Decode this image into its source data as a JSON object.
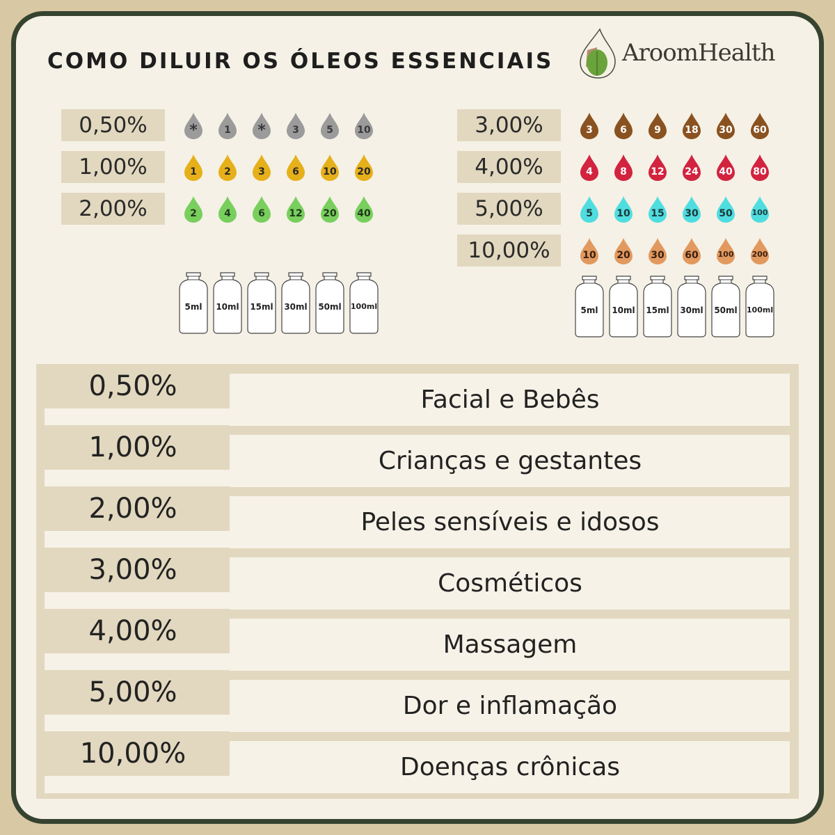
{
  "title": "COMO DILUIR OS ÓLEOS ESSENCIAIS",
  "logo": {
    "text": "AroomHealth",
    "leaf_color": "#6aa33c"
  },
  "left_group": {
    "rows": [
      {
        "label": "0,50%",
        "color": "#9b9b9b",
        "text_color": "#3a3a3a",
        "drops": [
          "*",
          "1",
          "*",
          "3",
          "5",
          "10"
        ]
      },
      {
        "label": "1,00%",
        "color": "#e6b01a",
        "text_color": "#2a2a2a",
        "drops": [
          "1",
          "2",
          "3",
          "6",
          "10",
          "20"
        ]
      },
      {
        "label": "2,00%",
        "color": "#79cf5e",
        "text_color": "#1f3a1a",
        "drops": [
          "2",
          "4",
          "6",
          "12",
          "20",
          "40"
        ]
      }
    ],
    "bottles": [
      "5ml",
      "10ml",
      "15ml",
      "30ml",
      "50ml",
      "100ml"
    ]
  },
  "right_group": {
    "rows": [
      {
        "label": "3,00%",
        "color": "#8a5220",
        "text_color": "#ffffff",
        "drops": [
          "3",
          "6",
          "9",
          "18",
          "30",
          "60"
        ]
      },
      {
        "label": "4,00%",
        "color": "#d2233f",
        "text_color": "#ffffff",
        "drops": [
          "4",
          "8",
          "12",
          "24",
          "40",
          "80"
        ]
      },
      {
        "label": "5,00%",
        "color": "#4fdde0",
        "text_color": "#1d3a3a",
        "drops": [
          "5",
          "10",
          "15",
          "30",
          "50",
          "100"
        ]
      },
      {
        "label": "10,00%",
        "color": "#e2995f",
        "text_color": "#3a2010",
        "drops": [
          "10",
          "20",
          "30",
          "60",
          "100",
          "200"
        ]
      }
    ],
    "bottles": [
      "5ml",
      "10ml",
      "15ml",
      "30ml",
      "50ml",
      "100ml"
    ]
  },
  "uses": [
    {
      "pct": "0,50%",
      "use": "Facial e Bebês"
    },
    {
      "pct": "1,00%",
      "use": "Crianças e gestantes"
    },
    {
      "pct": "2,00%",
      "use": "Peles sensíveis e idosos"
    },
    {
      "pct": "3,00%",
      "use": "Cosméticos"
    },
    {
      "pct": "4,00%",
      "use": "Massagem"
    },
    {
      "pct": "5,00%",
      "use": "Dor e inflamação"
    },
    {
      "pct": "10,00%",
      "use": "Doenças crônicas"
    }
  ]
}
